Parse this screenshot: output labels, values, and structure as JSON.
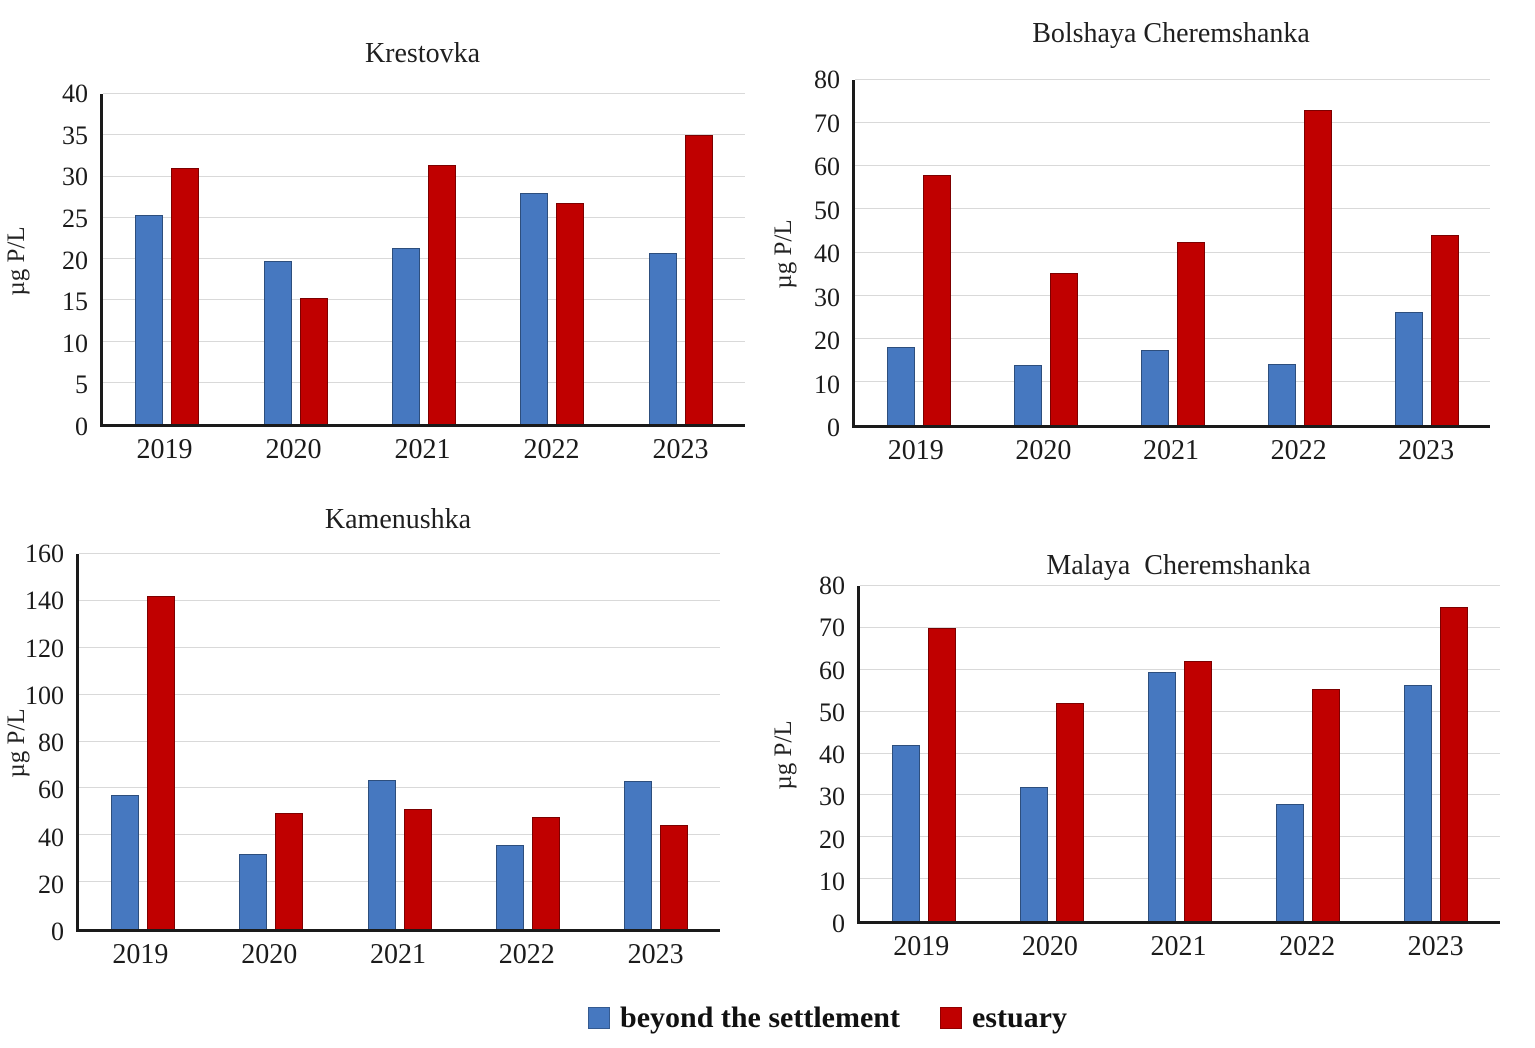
{
  "legend": {
    "items": [
      {
        "label": "beyond the settlement",
        "color": "#4678c0"
      },
      {
        "label": "estuary",
        "color": "#c00000"
      }
    ]
  },
  "colors": {
    "bar_blue": "#4678c0",
    "bar_red": "#c00000",
    "gridline": "#d9d9d9",
    "axis": "#1a1a1a"
  },
  "chart_data": [
    {
      "type": "bar",
      "title": "Krestovka",
      "ylabel": "µg P/L",
      "xlabel": "",
      "categories": [
        "2019",
        "2020",
        "2021",
        "2022",
        "2023"
      ],
      "series": [
        {
          "name": "beyond the settlement",
          "color": "#4678c0",
          "values": [
            25.3,
            19.8,
            21.3,
            28.0,
            20.7
          ]
        },
        {
          "name": "estuary",
          "color": "#c00000",
          "values": [
            31.0,
            15.3,
            31.4,
            26.8,
            35.0
          ]
        }
      ],
      "ylim": [
        0,
        40
      ],
      "ystep": 5,
      "grid": true,
      "legend_position": "shared-bottom"
    },
    {
      "type": "bar",
      "title": "Bolshaya Cheremshanka",
      "ylabel": "µg P/L",
      "xlabel": "",
      "categories": [
        "2019",
        "2020",
        "2021",
        "2022",
        "2023"
      ],
      "series": [
        {
          "name": "beyond the settlement",
          "color": "#4678c0",
          "values": [
            18.0,
            14.0,
            17.5,
            14.2,
            26.3
          ]
        },
        {
          "name": "estuary",
          "color": "#c00000",
          "values": [
            58.0,
            35.3,
            42.5,
            73.0,
            44.0
          ]
        }
      ],
      "ylim": [
        0,
        80
      ],
      "ystep": 10,
      "grid": true,
      "legend_position": "shared-bottom"
    },
    {
      "type": "bar",
      "title": "Kamenushka",
      "ylabel": "µg P/L",
      "xlabel": "",
      "categories": [
        "2019",
        "2020",
        "2021",
        "2022",
        "2023"
      ],
      "series": [
        {
          "name": "beyond the settlement",
          "color": "#4678c0",
          "values": [
            57.0,
            32.0,
            63.5,
            36.0,
            63.0
          ]
        },
        {
          "name": "estuary",
          "color": "#c00000",
          "values": [
            142.0,
            49.5,
            51.0,
            48.0,
            44.5
          ]
        }
      ],
      "ylim": [
        0,
        160
      ],
      "ystep": 20,
      "grid": true,
      "legend_position": "shared-bottom"
    },
    {
      "type": "bar",
      "title": "Malaya  Cheremshanka",
      "ylabel": "µg P/L",
      "xlabel": "",
      "categories": [
        "2019",
        "2020",
        "2021",
        "2022",
        "2023"
      ],
      "series": [
        {
          "name": "beyond the settlement",
          "color": "#4678c0",
          "values": [
            42.0,
            32.0,
            59.5,
            28.0,
            56.3
          ]
        },
        {
          "name": "estuary",
          "color": "#c00000",
          "values": [
            70.0,
            52.0,
            62.0,
            55.5,
            75.0
          ]
        }
      ],
      "ylim": [
        0,
        80
      ],
      "ystep": 10,
      "grid": true,
      "legend_position": "shared-bottom"
    }
  ]
}
